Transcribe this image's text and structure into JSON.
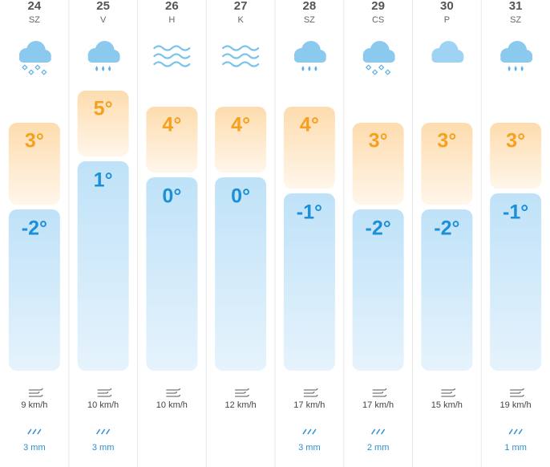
{
  "days": [
    {
      "date": "24",
      "weekday": "SZ",
      "icon": "sleet",
      "high": 3,
      "high_label": "3°",
      "low": -2,
      "low_label": "-2°",
      "wind": "9 km/h",
      "rain": "3 mm"
    },
    {
      "date": "25",
      "weekday": "V",
      "icon": "rain",
      "high": 5,
      "high_label": "5°",
      "low": 1,
      "low_label": "1°",
      "wind": "10 km/h",
      "rain": "3 mm"
    },
    {
      "date": "26",
      "weekday": "H",
      "icon": "fog",
      "high": 4,
      "high_label": "4°",
      "low": 0,
      "low_label": "0°",
      "wind": "10 km/h"
    },
    {
      "date": "27",
      "weekday": "K",
      "icon": "fog",
      "high": 4,
      "high_label": "4°",
      "low": 0,
      "low_label": "0°",
      "wind": "12 km/h"
    },
    {
      "date": "28",
      "weekday": "SZ",
      "icon": "rain",
      "high": 4,
      "high_label": "4°",
      "low": -1,
      "low_label": "-1°",
      "wind": "17 km/h",
      "rain": "3 mm"
    },
    {
      "date": "29",
      "weekday": "CS",
      "icon": "sleet",
      "high": 3,
      "high_label": "3°",
      "low": -2,
      "low_label": "-2°",
      "wind": "17 km/h",
      "rain": "2 mm"
    },
    {
      "date": "30",
      "weekday": "P",
      "icon": "cloud",
      "high": 3,
      "high_label": "3°",
      "low": -2,
      "low_label": "-2°",
      "wind": "15 km/h"
    },
    {
      "date": "31",
      "weekday": "SZ",
      "icon": "rain",
      "high": 3,
      "high_label": "3°",
      "low": -1,
      "low_label": "-1°",
      "wind": "19 km/h",
      "rain": "1 mm"
    }
  ]
}
